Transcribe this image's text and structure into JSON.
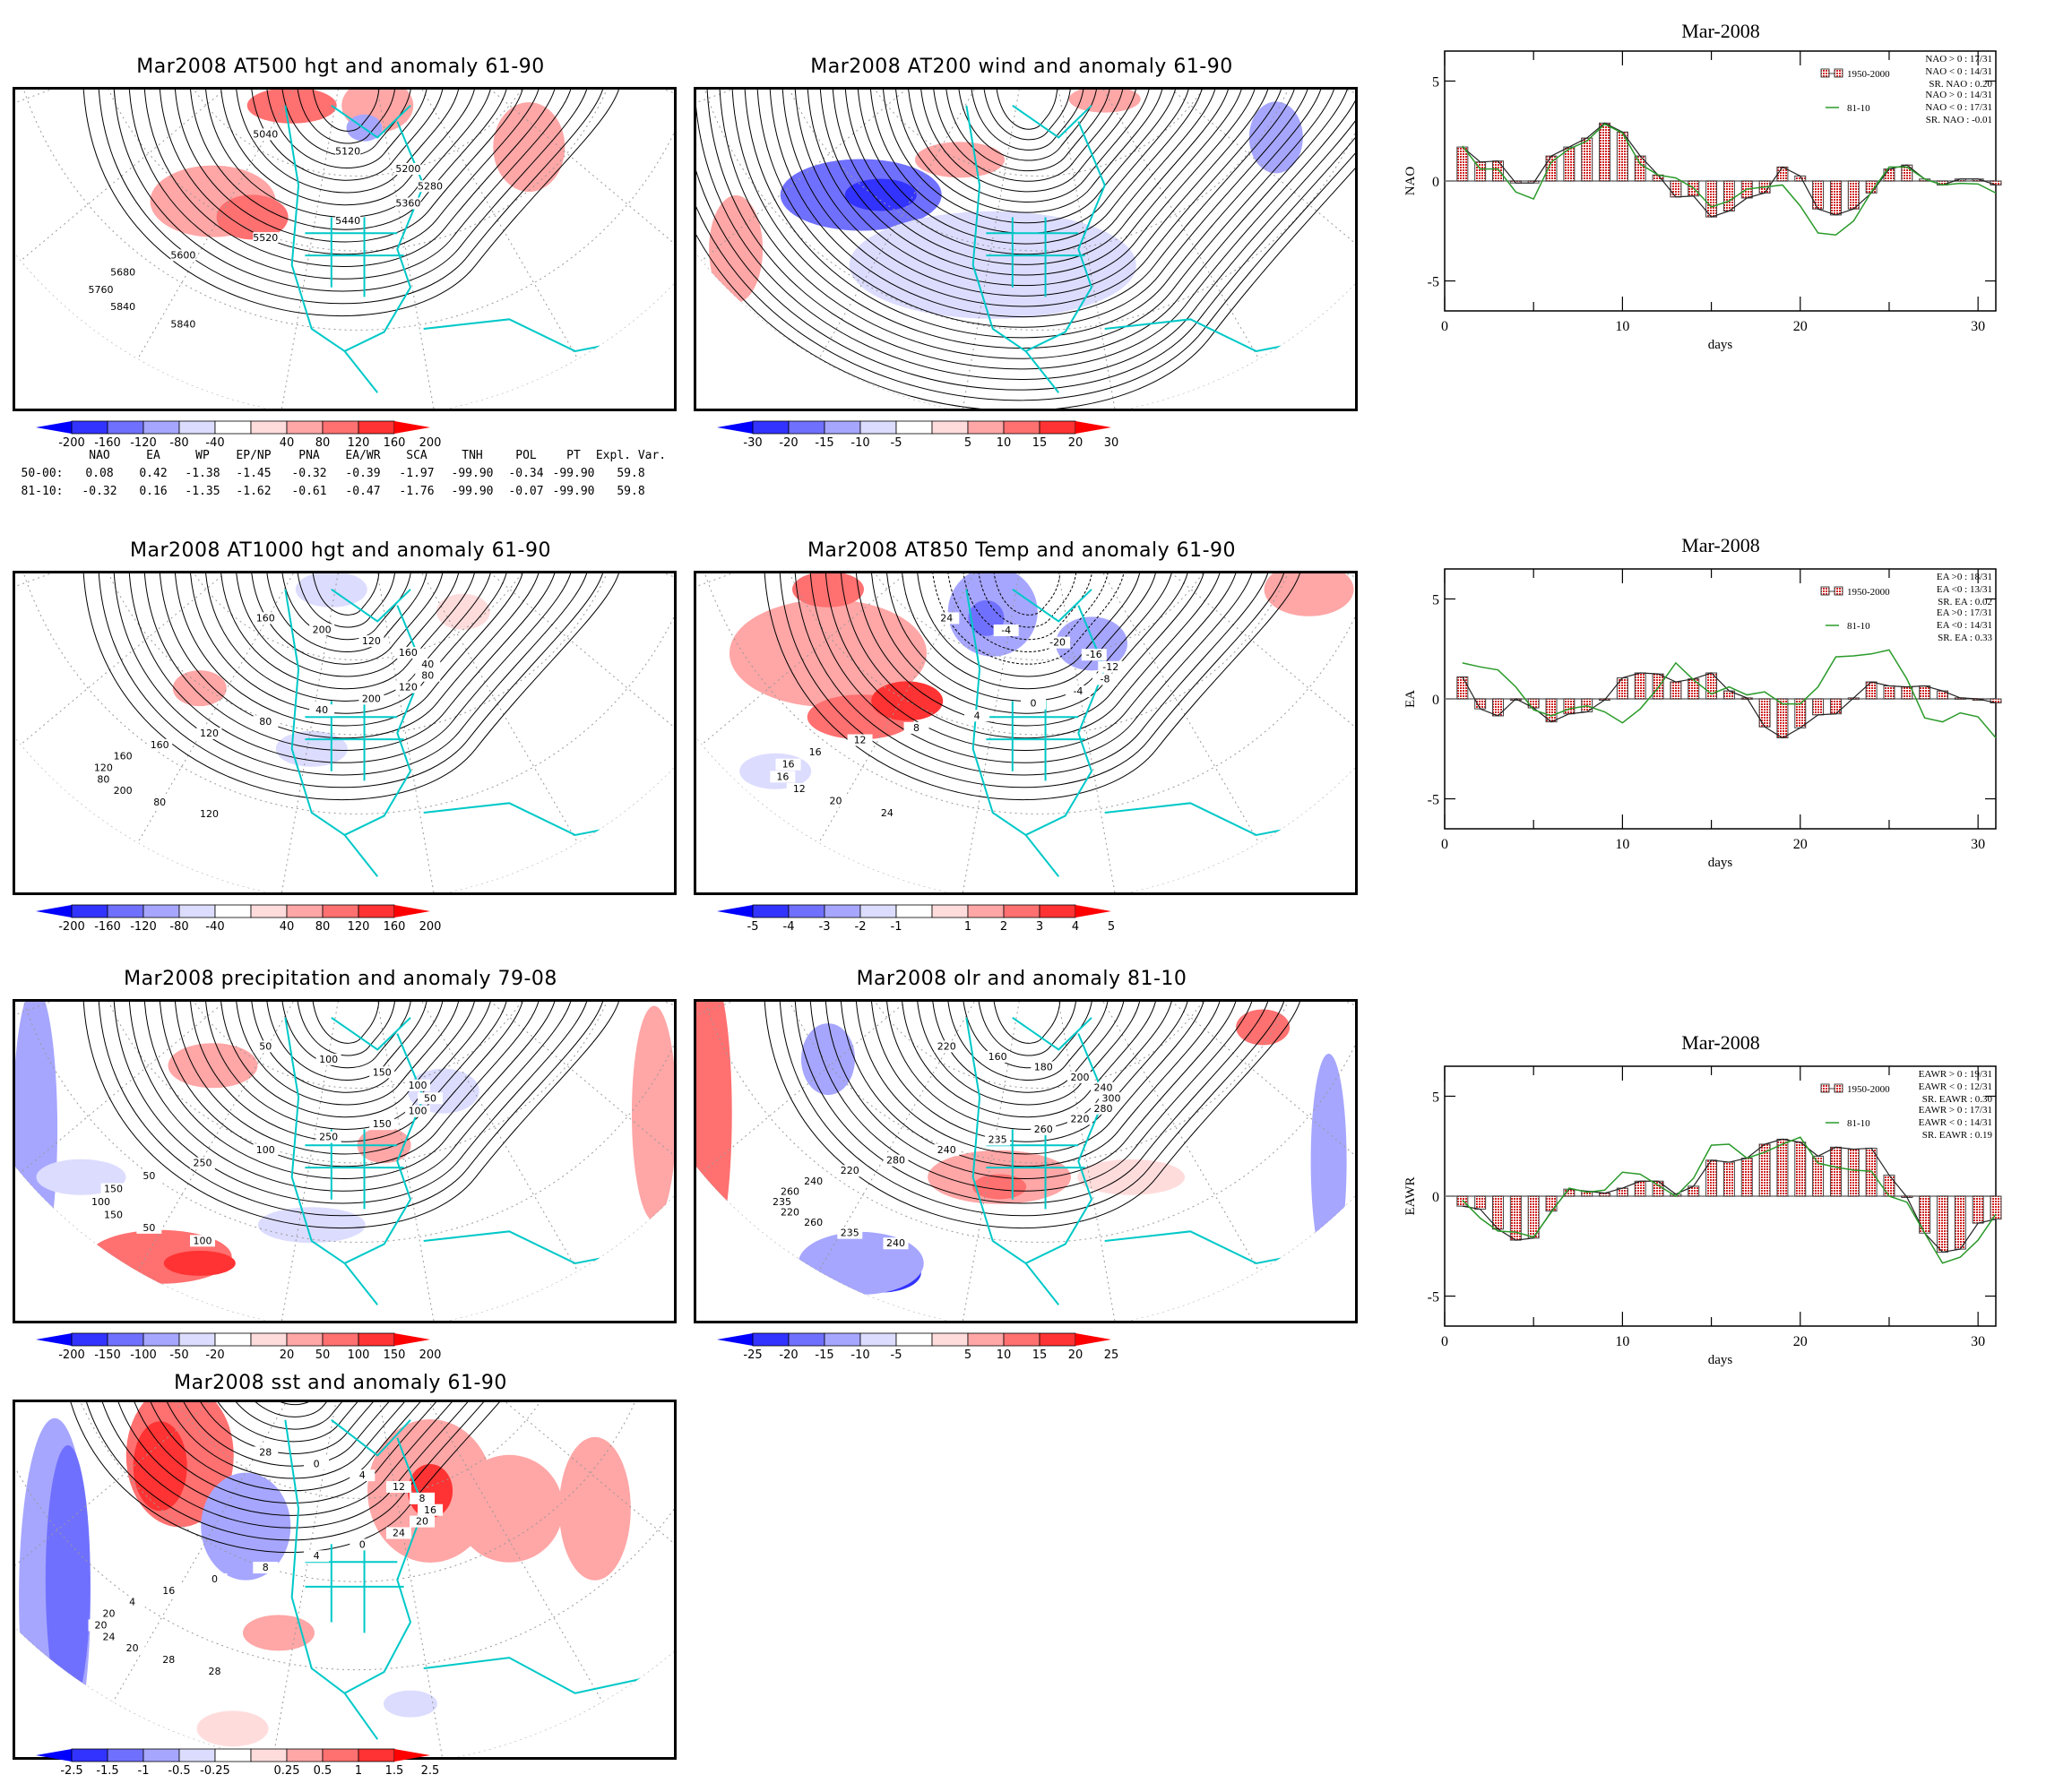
{
  "maps": [
    {
      "id": "at500",
      "title": "Mar2008 AT500 hgt and anomaly 61-90",
      "colorbar": [
        "-200",
        "-160",
        "-120",
        "-80",
        "-40",
        "40",
        "80",
        "120",
        "160",
        "200"
      ],
      "contour_labels": [
        "5040",
        "5120",
        "5200",
        "5280",
        "5360",
        "5440",
        "5520",
        "5600",
        "5680",
        "5760",
        "5840",
        "5840"
      ]
    },
    {
      "id": "at200",
      "title": "Mar2008 AT200 wind and anomaly 61-90",
      "colorbar": [
        "-30",
        "-20",
        "-15",
        "-10",
        "-5",
        "5",
        "10",
        "15",
        "20",
        "30"
      ],
      "contour_labels": []
    },
    {
      "id": "at1000",
      "title": "Mar2008 AT1000 hgt and anomaly 61-90",
      "colorbar": [
        "-200",
        "-160",
        "-120",
        "-80",
        "-40",
        "40",
        "80",
        "120",
        "160",
        "200"
      ],
      "contour_labels": [
        "160",
        "200",
        "120",
        "160",
        "40",
        "80",
        "120",
        "200",
        "40",
        "80",
        "120",
        "160",
        "160",
        "120",
        "80",
        "200",
        "80",
        "120"
      ]
    },
    {
      "id": "at850",
      "title": "Mar2008 AT850 Temp and anomaly 61-90",
      "colorbar": [
        "-5",
        "-4",
        "-3",
        "-2",
        "-1",
        "1",
        "2",
        "3",
        "4",
        "5"
      ],
      "contour_labels": [
        "24",
        "-4",
        "-20",
        "-16",
        "-12",
        "-8",
        "-4",
        "0",
        "4",
        "8",
        "12",
        "16",
        "16",
        "16",
        "12",
        "20",
        "24"
      ]
    },
    {
      "id": "precip",
      "title": "Mar2008 precipitation and anomaly 79-08",
      "colorbar": [
        "-200",
        "-150",
        "-100",
        "-50",
        "-20",
        "20",
        "50",
        "100",
        "150",
        "200"
      ],
      "contour_labels": [
        "50",
        "100",
        "150",
        "100",
        "50",
        "100",
        "150",
        "250",
        "100",
        "250",
        "50",
        "150",
        "100",
        "150",
        "50",
        "100"
      ]
    },
    {
      "id": "olr",
      "title": "Mar2008 olr and anomaly 81-10",
      "colorbar": [
        "-25",
        "-20",
        "-15",
        "-10",
        "-5",
        "5",
        "10",
        "15",
        "20",
        "25"
      ],
      "contour_labels": [
        "220",
        "160",
        "180",
        "200",
        "240",
        "300",
        "280",
        "220",
        "260",
        "235",
        "240",
        "280",
        "220",
        "240",
        "260",
        "235",
        "220",
        "260",
        "235",
        "240"
      ]
    },
    {
      "id": "sst",
      "title": "Mar2008 sst and anomaly 61-90",
      "colorbar": [
        "-2.5",
        "-1.5",
        "-1",
        "-0.5",
        "-0.25",
        "0.25",
        "0.5",
        "1",
        "1.5",
        "2.5"
      ],
      "contour_labels": [
        "28",
        "0",
        "4",
        "12",
        "8",
        "16",
        "20",
        "24",
        "0",
        "4",
        "8",
        "0",
        "16",
        "4",
        "20",
        "20",
        "24",
        "20",
        "28",
        "28"
      ]
    }
  ],
  "colors": {
    "blue_shades": [
      "#0000ff",
      "#3333ff",
      "#7070ff",
      "#a6a6ff",
      "#dcdcff"
    ],
    "red_shades": [
      "#ffdcdc",
      "#ffa6a6",
      "#ff7070",
      "#ff3333",
      "#ff0000"
    ],
    "coast": "#00c8c8",
    "bar_fill": "#e87070",
    "line_8110": "#2a9a2a"
  },
  "index_table": {
    "headers": [
      "NAO",
      "EA",
      "WP",
      "EP/NP",
      "PNA",
      "EA/WR",
      "SCA",
      "TNH",
      "POL",
      "PT",
      "Expl. Var."
    ],
    "rows": [
      {
        "label": "50-00:",
        "values": [
          "0.08",
          "0.42",
          "-1.38",
          "-1.45",
          "-0.32",
          "-0.39",
          "-1.97",
          "-99.90",
          "-0.34",
          "-99.90",
          "59.8"
        ]
      },
      {
        "label": "81-10:",
        "values": [
          "-0.32",
          "0.16",
          "-1.35",
          "-1.62",
          "-0.61",
          "-0.47",
          "-1.76",
          "-99.90",
          "-0.07",
          "-99.90",
          "59.8"
        ]
      }
    ]
  },
  "chart_data": [
    {
      "type": "bar",
      "id": "nao",
      "title": "Mar-2008",
      "xlabel": "days",
      "ylabel": "NAO",
      "xlim": [
        0,
        31
      ],
      "ylim": [
        -6.5,
        6.5
      ],
      "yticks": [
        "5",
        "0",
        "-5"
      ],
      "xticks": [
        "0",
        "10",
        "20",
        "30"
      ],
      "x": [
        1,
        2,
        3,
        4,
        5,
        6,
        7,
        8,
        9,
        10,
        11,
        12,
        13,
        14,
        15,
        16,
        17,
        18,
        19,
        20,
        21,
        22,
        23,
        24,
        25,
        26,
        27,
        28,
        29,
        30,
        31
      ],
      "series": [
        {
          "name": "1950-2000",
          "kind": "bar",
          "values": [
            1.7,
            0.95,
            1.0,
            -0.1,
            -0.1,
            1.25,
            1.7,
            2.15,
            2.9,
            2.45,
            1.25,
            0.3,
            -0.8,
            -0.75,
            -1.8,
            -1.5,
            -0.85,
            -0.6,
            0.7,
            0.25,
            -1.4,
            -1.7,
            -1.4,
            -0.6,
            0.6,
            0.8,
            0.1,
            -0.2,
            0.1,
            0.1,
            -0.2
          ]
        },
        {
          "name": "81-10",
          "kind": "line",
          "values": [
            1.75,
            0.6,
            0.6,
            -0.55,
            -0.9,
            0.95,
            1.6,
            2.0,
            2.85,
            2.4,
            0.85,
            0.3,
            0.15,
            -0.35,
            -1.3,
            -1.0,
            -0.4,
            -0.3,
            -0.2,
            -1.25,
            -2.6,
            -2.7,
            -2.0,
            -0.55,
            0.7,
            0.7,
            0.1,
            -0.2,
            -0.12,
            -0.15,
            -0.6
          ]
        }
      ],
      "legend": {
        "bar_label": "1950-2000",
        "line_label": "81-10",
        "position": "top-right",
        "bar_stats": [
          "NAO > 0 : 17/31",
          "NAO < 0 : 14/31",
          "SR. NAO :  0.20"
        ],
        "line_stats": [
          "NAO > 0 : 14/31",
          "NAO < 0 : 17/31",
          "SR. NAO : -0.01"
        ]
      }
    },
    {
      "type": "bar",
      "id": "ea",
      "title": "Mar-2008",
      "xlabel": "days",
      "ylabel": "EA",
      "xlim": [
        0,
        31
      ],
      "ylim": [
        -6.5,
        6.5
      ],
      "yticks": [
        "5",
        "0",
        "-5"
      ],
      "xticks": [
        "0",
        "10",
        "20",
        "30"
      ],
      "x": [
        1,
        2,
        3,
        4,
        5,
        6,
        7,
        8,
        9,
        10,
        11,
        12,
        13,
        14,
        15,
        16,
        17,
        18,
        19,
        20,
        21,
        22,
        23,
        24,
        25,
        26,
        27,
        28,
        29,
        30,
        31
      ],
      "series": [
        {
          "name": "1950-2000",
          "kind": "bar",
          "values": [
            1.1,
            -0.5,
            -0.85,
            0.0,
            -0.45,
            -1.15,
            -0.75,
            -0.65,
            -0.05,
            1.05,
            1.3,
            1.25,
            0.85,
            1.0,
            1.3,
            0.4,
            0.05,
            -1.4,
            -1.95,
            -1.45,
            -0.8,
            -0.75,
            0.05,
            0.85,
            0.65,
            0.6,
            0.65,
            0.4,
            0.05,
            0.0,
            -0.2
          ]
        },
        {
          "name": "81-10",
          "kind": "line",
          "values": [
            1.8,
            1.6,
            1.45,
            0.6,
            -0.55,
            -0.85,
            -0.5,
            -0.35,
            -0.65,
            -1.2,
            -0.5,
            0.55,
            1.8,
            0.95,
            0.25,
            0.6,
            0.2,
            0.35,
            -0.25,
            -0.25,
            0.6,
            2.1,
            2.15,
            2.25,
            2.45,
            1.0,
            -0.95,
            -1.15,
            -0.7,
            -0.9,
            -1.95
          ]
        }
      ],
      "legend": {
        "bar_label": "1950-2000",
        "line_label": "81-10",
        "position": "top-right",
        "bar_stats": [
          "EA >0 : 18/31",
          "EA <0 : 13/31",
          "SR. EA :  0.02"
        ],
        "line_stats": [
          "EA >0 : 17/31",
          "EA <0 : 14/31",
          "SR. EA :  0.33"
        ]
      }
    },
    {
      "type": "bar",
      "id": "eawr",
      "title": "Mar-2008",
      "xlabel": "days",
      "ylabel": "EAWR",
      "xlim": [
        0,
        31
      ],
      "ylim": [
        -6.5,
        6.5
      ],
      "yticks": [
        "5",
        "0",
        "-5"
      ],
      "xticks": [
        "0",
        "10",
        "20",
        "30"
      ],
      "x": [
        1,
        2,
        3,
        4,
        5,
        6,
        7,
        8,
        9,
        10,
        11,
        12,
        13,
        14,
        15,
        16,
        17,
        18,
        19,
        20,
        21,
        22,
        23,
        24,
        25,
        26,
        27,
        28,
        29,
        30,
        31
      ],
      "series": [
        {
          "name": "1950-2000",
          "kind": "bar",
          "values": [
            -0.5,
            -0.65,
            -1.65,
            -2.2,
            -2.1,
            -0.75,
            0.35,
            0.25,
            0.15,
            0.4,
            0.75,
            0.75,
            0.1,
            0.5,
            1.8,
            1.7,
            1.9,
            2.6,
            2.85,
            2.7,
            2.0,
            2.45,
            2.35,
            2.4,
            1.05,
            -0.05,
            -1.85,
            -2.8,
            -2.65,
            -1.35,
            -1.15
          ]
        },
        {
          "name": "81-10",
          "kind": "line",
          "values": [
            -0.2,
            -1.1,
            -1.75,
            -1.8,
            -2.05,
            -0.8,
            0.4,
            0.2,
            0.3,
            1.2,
            1.1,
            0.55,
            0.0,
            0.9,
            2.55,
            2.6,
            1.9,
            2.2,
            2.6,
            2.95,
            1.65,
            1.45,
            1.3,
            1.25,
            0.0,
            -0.3,
            -1.85,
            -3.35,
            -3.05,
            -2.2,
            -0.9
          ]
        }
      ],
      "legend": {
        "bar_label": "1950-2000",
        "line_label": "81-10",
        "position": "top-right",
        "bar_stats": [
          "EAWR > 0 : 19/31",
          "EAWR < 0 : 12/31",
          "SR. EAWR :  0.30"
        ],
        "line_stats": [
          "EAWR > 0 : 17/31",
          "EAWR < 0 : 14/31",
          "SR. EAWR :  0.19"
        ]
      }
    }
  ]
}
